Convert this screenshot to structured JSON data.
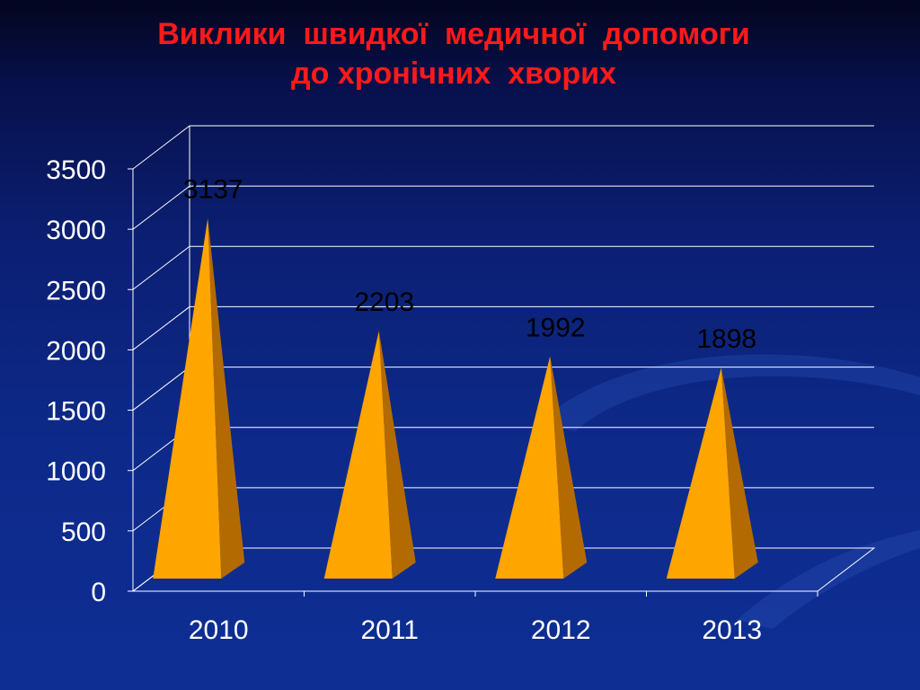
{
  "slide": {
    "title_line1": "Виклики  швидкої  медичної  допомоги",
    "title_line2": "до хронічних  хворих"
  },
  "colors": {
    "background": "#0d2a8a",
    "title": "#ff1a1a",
    "bar_front": "#ffa500",
    "bar_side": "#b36a00",
    "grid": "#ffffff"
  },
  "chart_data": {
    "type": "bar",
    "bar_shape": "3d-pyramid",
    "categories": [
      "2010",
      "2011",
      "2012",
      "2013"
    ],
    "values": [
      3137,
      2203,
      1992,
      1898
    ],
    "data_labels": [
      "3137",
      "2203",
      "1992",
      "1898"
    ],
    "yticks": [
      "0",
      "500",
      "1000",
      "1500",
      "2000",
      "2500",
      "3000",
      "3500"
    ],
    "ylim": [
      0,
      3500
    ],
    "grid": true,
    "legend": "none"
  }
}
